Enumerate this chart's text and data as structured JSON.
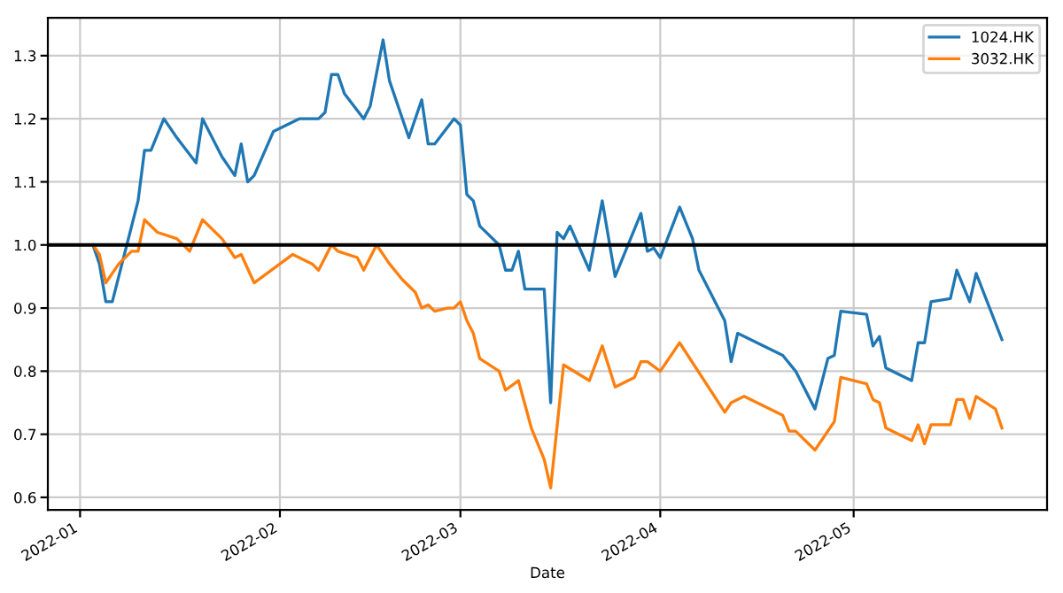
{
  "chart_data": {
    "type": "line",
    "xlabel": "Date",
    "xlim": [
      "2021-12-27",
      "2022-05-31"
    ],
    "xticks": [
      "2022-01",
      "2022-02",
      "2022-03",
      "2022-04",
      "2022-05"
    ],
    "ylim": [
      0.58,
      1.36
    ],
    "yticks": [
      0.6,
      0.7,
      0.8,
      0.9,
      {
        "value": 1.0,
        "label": "1.0"
      },
      1.1,
      1.2,
      1.3
    ],
    "grid": true,
    "legend": "top right",
    "ref_lines": [
      {
        "axis": "y",
        "value": 1.0,
        "color": "#000000"
      }
    ],
    "series": [
      {
        "name": "1024.HK",
        "color": "#1f77b4",
        "x": [
          "2022-01-03",
          "2022-01-04",
          "2022-01-05",
          "2022-01-06",
          "2022-01-07",
          "2022-01-09",
          "2022-01-10",
          "2022-01-11",
          "2022-01-12",
          "2022-01-14",
          "2022-01-16",
          "2022-01-19",
          "2022-01-20",
          "2022-01-23",
          "2022-01-25",
          "2022-01-26",
          "2022-01-27",
          "2022-01-28",
          "2022-01-31",
          "2022-02-04",
          "2022-02-07",
          "2022-02-08",
          "2022-02-09",
          "2022-02-10",
          "2022-02-11",
          "2022-02-14",
          "2022-02-15",
          "2022-02-17",
          "2022-02-18",
          "2022-02-21",
          "2022-02-23",
          "2022-02-24",
          "2022-02-25",
          "2022-02-28",
          "2022-03-01",
          "2022-03-02",
          "2022-03-03",
          "2022-03-04",
          "2022-03-07",
          "2022-03-08",
          "2022-03-09",
          "2022-03-10",
          "2022-03-11",
          "2022-03-14",
          "2022-03-15",
          "2022-03-16",
          "2022-03-17",
          "2022-03-18",
          "2022-03-21",
          "2022-03-23",
          "2022-03-25",
          "2022-03-29",
          "2022-03-30",
          "2022-03-31",
          "2022-04-01",
          "2022-04-04",
          "2022-04-06",
          "2022-04-07",
          "2022-04-11",
          "2022-04-12",
          "2022-04-13",
          "2022-04-20",
          "2022-04-22",
          "2022-04-25",
          "2022-04-27",
          "2022-04-28",
          "2022-04-29",
          "2022-05-03",
          "2022-05-04",
          "2022-05-05",
          "2022-05-06",
          "2022-05-10",
          "2022-05-11",
          "2022-05-12",
          "2022-05-13",
          "2022-05-16",
          "2022-05-17",
          "2022-05-19",
          "2022-05-20",
          "2022-05-24"
        ],
        "values": [
          1.0,
          0.97,
          0.91,
          0.91,
          0.95,
          1.03,
          1.07,
          1.15,
          1.15,
          1.2,
          1.17,
          1.13,
          1.2,
          1.14,
          1.11,
          1.16,
          1.1,
          1.11,
          1.18,
          1.2,
          1.2,
          1.21,
          1.27,
          1.27,
          1.24,
          1.2,
          1.22,
          1.325,
          1.26,
          1.17,
          1.23,
          1.16,
          1.16,
          1.2,
          1.19,
          1.08,
          1.07,
          1.03,
          1.0,
          0.96,
          0.96,
          0.99,
          0.93,
          0.93,
          0.75,
          1.02,
          1.01,
          1.03,
          0.96,
          1.07,
          0.95,
          1.05,
          0.99,
          0.995,
          0.98,
          1.06,
          1.01,
          0.96,
          0.88,
          0.815,
          0.86,
          0.825,
          0.8,
          0.74,
          0.82,
          0.825,
          0.895,
          0.89,
          0.84,
          0.855,
          0.805,
          0.785,
          0.845,
          0.845,
          0.91,
          0.915,
          0.96,
          0.91,
          0.955,
          0.85
        ]
      },
      {
        "name": "3032.HK",
        "color": "#ff7f0e",
        "x": [
          "2022-01-03",
          "2022-01-04",
          "2022-01-05",
          "2022-01-07",
          "2022-01-09",
          "2022-01-10",
          "2022-01-11",
          "2022-01-13",
          "2022-01-16",
          "2022-01-18",
          "2022-01-20",
          "2022-01-23",
          "2022-01-25",
          "2022-01-26",
          "2022-01-28",
          "2022-02-03",
          "2022-02-06",
          "2022-02-07",
          "2022-02-09",
          "2022-02-10",
          "2022-02-13",
          "2022-02-14",
          "2022-02-16",
          "2022-02-18",
          "2022-02-20",
          "2022-02-22",
          "2022-02-23",
          "2022-02-24",
          "2022-02-25",
          "2022-02-27",
          "2022-02-28",
          "2022-03-01",
          "2022-03-02",
          "2022-03-03",
          "2022-03-04",
          "2022-03-07",
          "2022-03-08",
          "2022-03-10",
          "2022-03-12",
          "2022-03-14",
          "2022-03-15",
          "2022-03-17",
          "2022-03-21",
          "2022-03-23",
          "2022-03-25",
          "2022-03-28",
          "2022-03-29",
          "2022-03-30",
          "2022-04-01",
          "2022-04-04",
          "2022-04-11",
          "2022-04-12",
          "2022-04-14",
          "2022-04-20",
          "2022-04-21",
          "2022-04-22",
          "2022-04-25",
          "2022-04-28",
          "2022-04-29",
          "2022-05-03",
          "2022-05-04",
          "2022-05-05",
          "2022-05-06",
          "2022-05-10",
          "2022-05-11",
          "2022-05-12",
          "2022-05-13",
          "2022-05-16",
          "2022-05-17",
          "2022-05-18",
          "2022-05-19",
          "2022-05-20",
          "2022-05-23",
          "2022-05-24"
        ],
        "values": [
          1.0,
          0.985,
          0.94,
          0.97,
          0.99,
          0.99,
          1.04,
          1.02,
          1.01,
          0.99,
          1.04,
          1.01,
          0.98,
          0.985,
          0.94,
          0.985,
          0.97,
          0.96,
          1.0,
          0.99,
          0.98,
          0.96,
          1.0,
          0.97,
          0.945,
          0.925,
          0.9,
          0.905,
          0.895,
          0.9,
          0.9,
          0.91,
          0.88,
          0.86,
          0.82,
          0.8,
          0.77,
          0.785,
          0.71,
          0.66,
          0.615,
          0.81,
          0.785,
          0.84,
          0.775,
          0.79,
          0.815,
          0.815,
          0.8,
          0.845,
          0.735,
          0.75,
          0.76,
          0.73,
          0.705,
          0.705,
          0.675,
          0.72,
          0.79,
          0.78,
          0.755,
          0.75,
          0.71,
          0.69,
          0.715,
          0.685,
          0.715,
          0.715,
          0.755,
          0.755,
          0.725,
          0.76,
          0.74,
          0.71
        ]
      }
    ]
  }
}
